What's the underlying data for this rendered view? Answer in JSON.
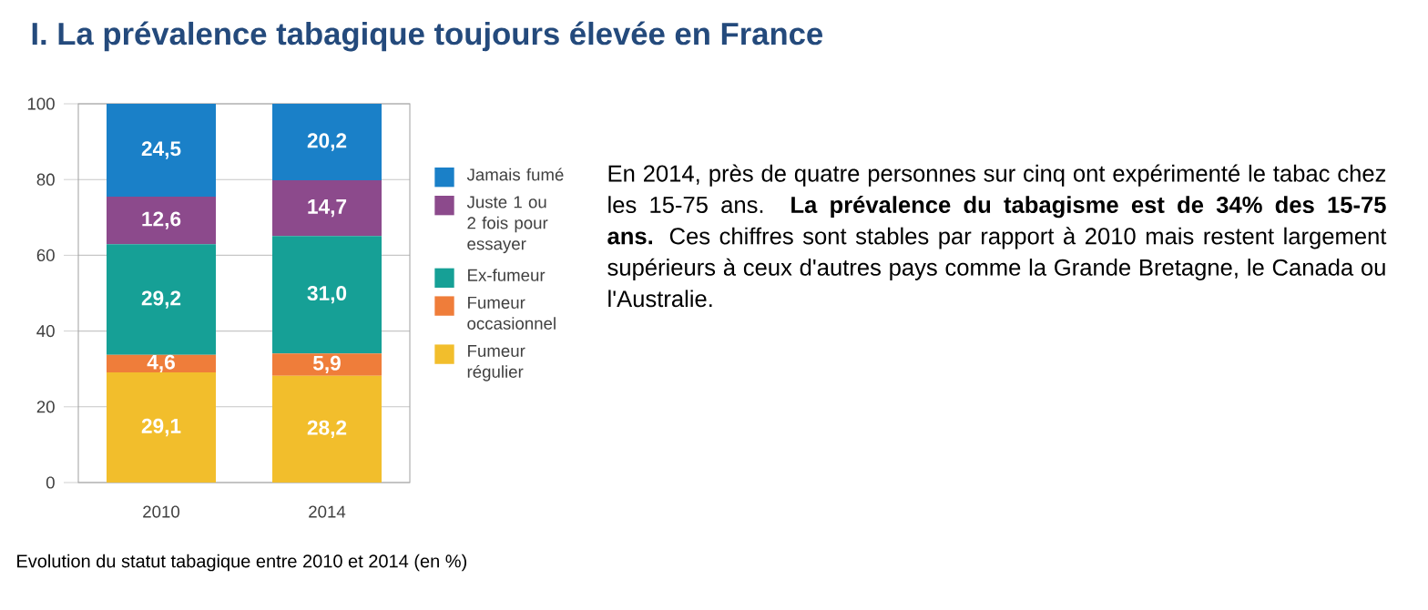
{
  "chart_data": [
    {
      "type": "bar",
      "title": "I. La prévalence tabagique toujours élevée en France",
      "annotations": [
        "Evolution du statut tabagique entre 2010 et 2014 (en %)"
      ],
      "categories": [
        "2010",
        "2014"
      ],
      "stacked": true,
      "ylim": [
        0,
        100
      ],
      "yticks": [
        0,
        20,
        40,
        60,
        80,
        100
      ],
      "grid": "y",
      "legend": "right",
      "series": [
        {
          "name": "Fumeur régulier",
          "color": "#f2be2c",
          "values": [
            29.1,
            28.2
          ],
          "value_labels": [
            "29,1",
            "28,2"
          ]
        },
        {
          "name": "Fumeur occasionnel",
          "color": "#ef7d3a",
          "values": [
            4.6,
            5.9
          ],
          "value_labels": [
            "4,6",
            "5,9"
          ]
        },
        {
          "name": "Ex-fumeur",
          "color": "#16a096",
          "values": [
            29.2,
            31.0
          ],
          "value_labels": [
            "29,2",
            "31,0"
          ]
        },
        {
          "name": "Juste 1 ou 2 fois pour essayer",
          "color": "#8c4a8c",
          "values": [
            12.6,
            14.7
          ],
          "value_labels": [
            "12,6",
            "14,7"
          ]
        },
        {
          "name": "Jamais fumé",
          "color": "#1a80c8",
          "values": [
            24.5,
            20.2
          ],
          "value_labels": [
            "24,5",
            "20,2"
          ]
        }
      ]
    },
    {
      "type": "other",
      "annotations": [
        "En 2014, près de quatre personnes sur cinq ont expérimenté le tabac chez les 15-75 ans. **La prévalence du tabagisme est de 34% des 15-75 ans.** Ces chiffres sont stables par rapport à 2010 mais restent largement supérieurs à ceux d'autres pays comme la Grande Bretagne, le Canada ou l'Australie."
      ]
    }
  ]
}
